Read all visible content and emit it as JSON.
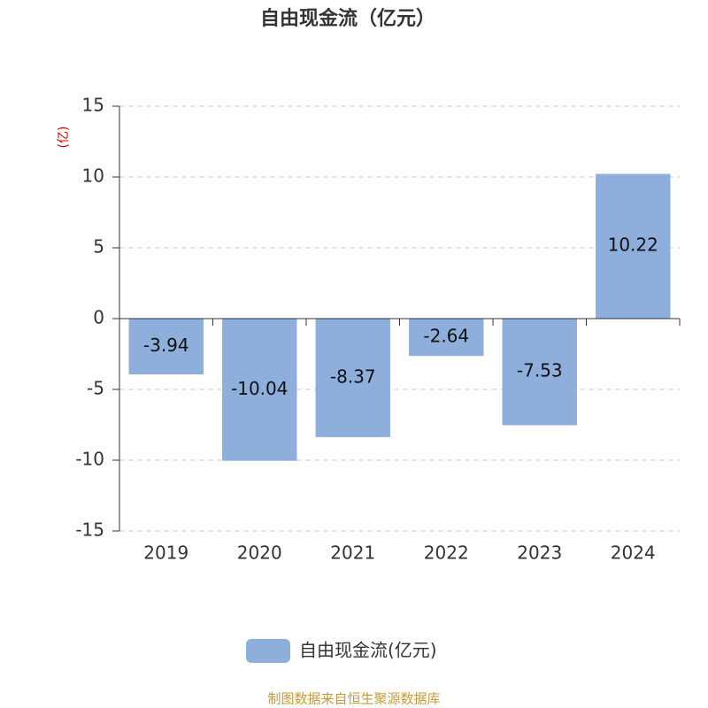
{
  "chart_data": {
    "type": "bar",
    "title": "自由现金流（亿元）",
    "y_label": "(亿)",
    "categories": [
      "2019",
      "2020",
      "2021",
      "2022",
      "2023",
      "2024"
    ],
    "series": [
      {
        "name": "自由现金流(亿元)",
        "color": "#8eaedb",
        "values": [
          -3.94,
          -10.04,
          -8.37,
          -2.64,
          -7.53,
          10.22
        ]
      }
    ],
    "ylim": [
      -15,
      15
    ],
    "yticks": [
      -15,
      -10,
      -5,
      0,
      5,
      10,
      15
    ],
    "grid": true,
    "legend": "bottom",
    "source": "制图数据来自恒生聚源数据库"
  }
}
